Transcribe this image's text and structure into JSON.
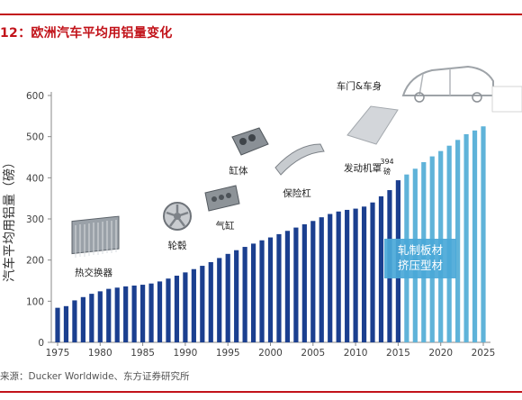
{
  "header": {
    "title": "12：欧洲汽车平均用铝量变化"
  },
  "source": "来源：Ducker Worldwide、东方证券研究所",
  "colors": {
    "accent_red": "#c2131a",
    "actual_bar": "#1b3f8f",
    "forecast_bar": "#5fb3d9",
    "forecast_box": "#4aa8d8",
    "axis_text": "#404040"
  },
  "chart_data": {
    "type": "bar",
    "ylabel": "汽车平均用铝量（磅）",
    "ylim": [
      0,
      600
    ],
    "yticks": [
      0,
      100,
      200,
      300,
      400,
      500,
      600
    ],
    "xticks": [
      1975,
      1980,
      1985,
      1990,
      1995,
      2000,
      2005,
      2010,
      2015,
      2020,
      2025
    ],
    "grid": false,
    "series": [
      {
        "type": "actual",
        "x": [
          1975,
          1976,
          1977,
          1978,
          1979,
          1980,
          1981,
          1982,
          1983,
          1984,
          1985,
          1986,
          1987,
          1988,
          1989,
          1990,
          1991,
          1992,
          1993,
          1994,
          1995,
          1996,
          1997,
          1998,
          1999,
          2000,
          2001,
          2002,
          2003,
          2004,
          2005,
          2006,
          2007,
          2008,
          2009,
          2010,
          2011,
          2012,
          2013,
          2014,
          2015
        ],
        "values": [
          84,
          88,
          102,
          110,
          118,
          124,
          130,
          133,
          136,
          138,
          140,
          143,
          148,
          155,
          162,
          170,
          178,
          186,
          195,
          205,
          215,
          224,
          232,
          240,
          248,
          255,
          263,
          271,
          279,
          287,
          295,
          304,
          312,
          318,
          322,
          325,
          330,
          340,
          355,
          370,
          394
        ]
      },
      {
        "type": "forecast",
        "x": [
          2016,
          2017,
          2018,
          2019,
          2020,
          2021,
          2022,
          2023,
          2024,
          2025
        ],
        "values": [
          408,
          422,
          438,
          452,
          465,
          478,
          492,
          506,
          515,
          525
        ]
      }
    ],
    "annotations": [
      {
        "text": "热交换器",
        "year": 1979
      },
      {
        "text": "轮毂",
        "year": 1987
      },
      {
        "text": "气缸",
        "year": 1994
      },
      {
        "text": "缸体",
        "year": 1997
      },
      {
        "text": "保险杠",
        "year": 2004
      },
      {
        "text": "发动机罩",
        "year": 2010
      },
      {
        "text": "车门&车身",
        "year": 2012
      },
      {
        "text": "394",
        "year": 2014
      },
      {
        "text": "磅",
        "year": 2014
      }
    ],
    "forecast_labels": [
      "轧制板材",
      "挤压型材"
    ]
  }
}
